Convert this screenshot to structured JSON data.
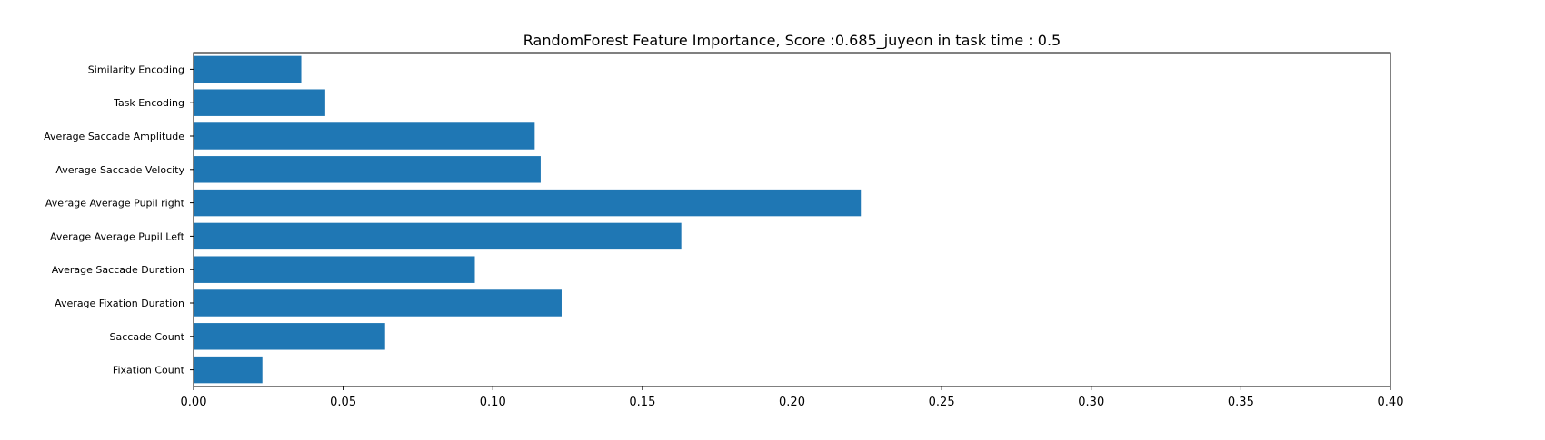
{
  "chart_data": {
    "type": "bar",
    "orientation": "horizontal",
    "title": "RandomForest Feature Importance, Score :0.685_juyeon in task time : 0.5",
    "xlabel": "",
    "ylabel": "",
    "xlim": [
      0,
      0.4
    ],
    "x_ticks": [
      "0.00",
      "0.05",
      "0.10",
      "0.15",
      "0.20",
      "0.25",
      "0.30",
      "0.35",
      "0.40"
    ],
    "x_tick_values": [
      0,
      0.05,
      0.1,
      0.15,
      0.2,
      0.25,
      0.3,
      0.35,
      0.4
    ],
    "grid": false,
    "color": "#1f77b4",
    "categories": [
      "Similarity Encoding",
      "Task Encoding",
      "Average Saccade Amplitude",
      "Average Saccade Velocity",
      "Average Average Pupil right",
      "Average Average Pupil Left",
      "Average Saccade Duration",
      "Average Fixation Duration",
      "Saccade Count",
      "Fixation Count"
    ],
    "values": [
      0.036,
      0.044,
      0.114,
      0.116,
      0.223,
      0.163,
      0.094,
      0.123,
      0.064,
      0.023
    ]
  }
}
